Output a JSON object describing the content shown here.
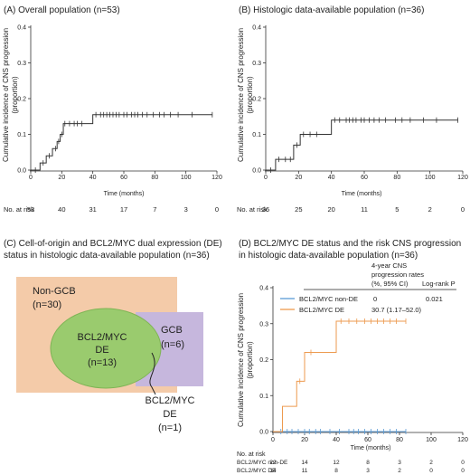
{
  "chart_data": [
    {
      "id": "A",
      "type": "step",
      "title": "(A)  Overall population (n=53)",
      "xlabel": "Time (months)",
      "ylabel_lines": [
        "Cumulative incidence of CNS progression",
        "(proportion)"
      ],
      "xlim": [
        0,
        120
      ],
      "ylim": [
        0,
        0.4
      ],
      "xticks": [
        0,
        20,
        40,
        60,
        80,
        100,
        120
      ],
      "yticks": [
        0,
        0.1,
        0.2,
        0.3,
        0.4
      ],
      "ytick_labels": [
        "0.0",
        "0.1",
        "0.2",
        "0.3",
        "0.4"
      ],
      "series": [
        {
          "steps": [
            [
              0,
              0
            ],
            [
              6,
              0.02
            ],
            [
              10,
              0.04
            ],
            [
              14,
              0.06
            ],
            [
              17,
              0.08
            ],
            [
              19,
              0.1
            ],
            [
              21,
              0.13
            ],
            [
              26,
              0.13
            ],
            [
              40,
              0.155
            ],
            [
              117,
              0.155
            ]
          ],
          "censors": [
            [
              3,
              0
            ],
            [
              8,
              0.02
            ],
            [
              12,
              0.04
            ],
            [
              16,
              0.06
            ],
            [
              18,
              0.08
            ],
            [
              20,
              0.1
            ],
            [
              22,
              0.13
            ],
            [
              25,
              0.13
            ],
            [
              28,
              0.13
            ],
            [
              30,
              0.13
            ],
            [
              33,
              0.13
            ],
            [
              42,
              0.155
            ],
            [
              45,
              0.155
            ],
            [
              47,
              0.155
            ],
            [
              49,
              0.155
            ],
            [
              51,
              0.155
            ],
            [
              53,
              0.155
            ],
            [
              55,
              0.155
            ],
            [
              57,
              0.155
            ],
            [
              60,
              0.155
            ],
            [
              62,
              0.155
            ],
            [
              65,
              0.155
            ],
            [
              67,
              0.155
            ],
            [
              69,
              0.155
            ],
            [
              72,
              0.155
            ],
            [
              75,
              0.155
            ],
            [
              79,
              0.155
            ],
            [
              83,
              0.155
            ],
            [
              86,
              0.155
            ],
            [
              90,
              0.155
            ],
            [
              95,
              0.155
            ],
            [
              104,
              0.155
            ],
            [
              117,
              0.155
            ]
          ]
        }
      ],
      "at_risk_label": "No. at risk",
      "at_risk": [
        "53",
        "40",
        "31",
        "17",
        "7",
        "3",
        "0"
      ]
    },
    {
      "id": "B",
      "type": "step",
      "title": "(B)  Histologic data-available population (n=36)",
      "xlabel": "Time (months)",
      "ylabel_lines": [
        "Cumulative incidence of CNS progression",
        "(proportion)"
      ],
      "xlim": [
        0,
        120
      ],
      "ylim": [
        0,
        0.4
      ],
      "xticks": [
        0,
        20,
        40,
        60,
        80,
        100,
        120
      ],
      "yticks": [
        0,
        0.1,
        0.2,
        0.3,
        0.4
      ],
      "ytick_labels": [
        "0.0",
        "0.1",
        "0.2",
        "0.3",
        "0.4"
      ],
      "series": [
        {
          "steps": [
            [
              0,
              0
            ],
            [
              6,
              0.03
            ],
            [
              17,
              0.07
            ],
            [
              21,
              0.1
            ],
            [
              40,
              0.14
            ],
            [
              117,
              0.14
            ]
          ],
          "censors": [
            [
              3,
              0
            ],
            [
              8,
              0.03
            ],
            [
              12,
              0.03
            ],
            [
              15,
              0.03
            ],
            [
              19,
              0.07
            ],
            [
              23,
              0.1
            ],
            [
              27,
              0.1
            ],
            [
              31,
              0.1
            ],
            [
              42,
              0.14
            ],
            [
              45,
              0.14
            ],
            [
              49,
              0.14
            ],
            [
              51,
              0.14
            ],
            [
              53,
              0.14
            ],
            [
              55,
              0.14
            ],
            [
              58,
              0.14
            ],
            [
              60,
              0.14
            ],
            [
              63,
              0.14
            ],
            [
              66,
              0.14
            ],
            [
              69,
              0.14
            ],
            [
              73,
              0.14
            ],
            [
              79,
              0.14
            ],
            [
              83,
              0.14
            ],
            [
              88,
              0.14
            ],
            [
              96,
              0.14
            ],
            [
              104,
              0.14
            ],
            [
              117,
              0.14
            ]
          ]
        }
      ],
      "at_risk_label": "No. at risk",
      "at_risk": [
        "36",
        "25",
        "20",
        "11",
        "5",
        "2",
        "0"
      ]
    },
    {
      "id": "D",
      "type": "step",
      "title_lines": [
        "(D)  BCL2/MYC DE status and the risk CNS progression",
        "in histologic data-available population (n=36)"
      ],
      "xlabel": "Time (months)",
      "ylabel_lines": [
        "Cumulative incidence of CNS progression",
        "(proportion)"
      ],
      "xlim": [
        0,
        120
      ],
      "ylim": [
        0,
        0.4
      ],
      "xticks": [
        0,
        20,
        40,
        60,
        80,
        100,
        120
      ],
      "yticks": [
        0,
        0.1,
        0.2,
        0.3,
        0.4
      ],
      "ytick_labels": [
        "0.0",
        "0.1",
        "0.2",
        "0.3",
        "0.4"
      ],
      "series": [
        {
          "name": "BCL2/MYC non-DE",
          "color": "#5b9bd5",
          "steps": [
            [
              0,
              0
            ],
            [
              84,
              0
            ]
          ],
          "censors": [
            [
              5,
              0
            ],
            [
              9,
              0
            ],
            [
              12,
              0
            ],
            [
              16,
              0
            ],
            [
              20,
              0
            ],
            [
              23,
              0
            ],
            [
              27,
              0
            ],
            [
              30,
              0
            ],
            [
              36,
              0
            ],
            [
              42,
              0
            ],
            [
              48,
              0
            ],
            [
              51,
              0
            ],
            [
              54,
              0
            ],
            [
              58,
              0
            ],
            [
              62,
              0
            ],
            [
              66,
              0
            ],
            [
              70,
              0
            ],
            [
              74,
              0
            ],
            [
              78,
              0
            ],
            [
              84,
              0
            ]
          ]
        },
        {
          "name": "BCL2/MYC DE",
          "color": "#ed9a4f",
          "steps": [
            [
              0,
              0
            ],
            [
              6,
              0.07
            ],
            [
              15,
              0.14
            ],
            [
              20,
              0.22
            ],
            [
              26,
              0.22
            ],
            [
              40,
              0.307
            ],
            [
              84,
              0.307
            ]
          ],
          "censors": [
            [
              17,
              0.14
            ],
            [
              24,
              0.22
            ],
            [
              43,
              0.307
            ],
            [
              48,
              0.307
            ],
            [
              53,
              0.307
            ],
            [
              58,
              0.307
            ],
            [
              62,
              0.307
            ],
            [
              66,
              0.307
            ],
            [
              70,
              0.307
            ],
            [
              74,
              0.307
            ],
            [
              78,
              0.307
            ],
            [
              84,
              0.307
            ]
          ]
        }
      ],
      "table": {
        "header_rate": [
          "4-year CNS",
          "progression rates",
          "(%, 95% CI)"
        ],
        "header_p": "Log-rank P",
        "rows": [
          {
            "label": "BCL2/MYC non-DE",
            "rate": "0",
            "p": "0.021"
          },
          {
            "label": "BCL2/MYC DE",
            "rate": "30.7 (1.17–52.0)",
            "p": ""
          }
        ]
      },
      "at_risk_label": "No. at risk",
      "at_risk_rows": [
        {
          "label": "BCL2/MYC non-DE",
          "values": [
            "22",
            "14",
            "12",
            "8",
            "3",
            "2",
            "0"
          ]
        },
        {
          "label": "BCL2/MYC DE",
          "values": [
            "14",
            "11",
            "8",
            "3",
            "2",
            "0",
            "0"
          ]
        }
      ]
    }
  ],
  "venn": {
    "title_lines": [
      "(C)  Cell-of-origin and BCL2/MYC dual expression (DE)",
      "status in histologic data-available population (n=36)"
    ],
    "nongcb_label": "Non-GCB",
    "nongcb_n": "(n=30)",
    "gcb_label": "GCB",
    "gcb_n": "(n=6)",
    "de_label_1": "BCL2/MYC",
    "de_label_2": "DE",
    "de_n": "(n=13)",
    "overlap_label_1": "BCL2/MYC",
    "overlap_label_2": "DE",
    "overlap_n": "(n=1)",
    "colors": {
      "nongcb": "#f4cba9",
      "gcb": "#c6b7dd",
      "de": "#9acb6e",
      "de_stroke": "#7fb455"
    }
  }
}
